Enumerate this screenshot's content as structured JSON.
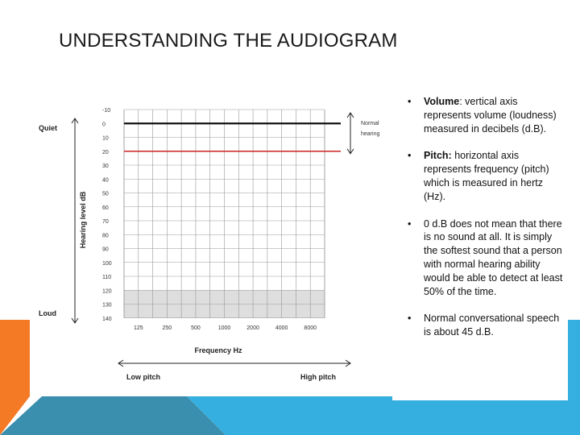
{
  "slide": {
    "title": "UNDERSTANDING THE AUDIOGRAM"
  },
  "audiogram": {
    "y_axis_label": "Hearing level dB",
    "quiet_label": "Quiet",
    "loud_label": "Loud",
    "normal_hearing_label_line1": "Normal",
    "normal_hearing_label_line2": "hearing",
    "x_axis_label": "Frequency Hz",
    "low_pitch_label": "Low pitch",
    "high_pitch_label": "High pitch",
    "y_ticks": [
      "-10",
      "0",
      "10",
      "20",
      "30",
      "40",
      "50",
      "60",
      "70",
      "80",
      "90",
      "100",
      "110",
      "120",
      "130",
      "140"
    ],
    "x_ticks": [
      "125",
      "250",
      "500",
      "1000",
      "2000",
      "4000",
      "8000"
    ],
    "black_line_db": 0,
    "red_line_db": 20,
    "shaded_from_db": 120,
    "shaded_to_db": 140,
    "normal_range_db": [
      -10,
      20
    ],
    "colors": {
      "black_line": "#111111",
      "red_line": "#cc2222",
      "shade": "#dedede",
      "grid": "#999999"
    }
  },
  "bullets": [
    {
      "bold": "Volume",
      "text": ": vertical axis represents volume (loudness) measured in decibels (d.B)."
    },
    {
      "bold": "Pitch:",
      "text": " horizontal axis represents frequency (pitch) which is measured in hertz (Hz)."
    },
    {
      "bold": "",
      "text": "0 d.B does not mean that there is no sound at all. It is simply the softest sound that a person with normal hearing ability would be able to detect at least 50% of the time."
    },
    {
      "bold": "",
      "text": "Normal conversational speech is about 45 d.B."
    }
  ],
  "theme": {
    "orange": "#f47a26",
    "teal": "#3a8fae",
    "blue": "#35aee0"
  }
}
